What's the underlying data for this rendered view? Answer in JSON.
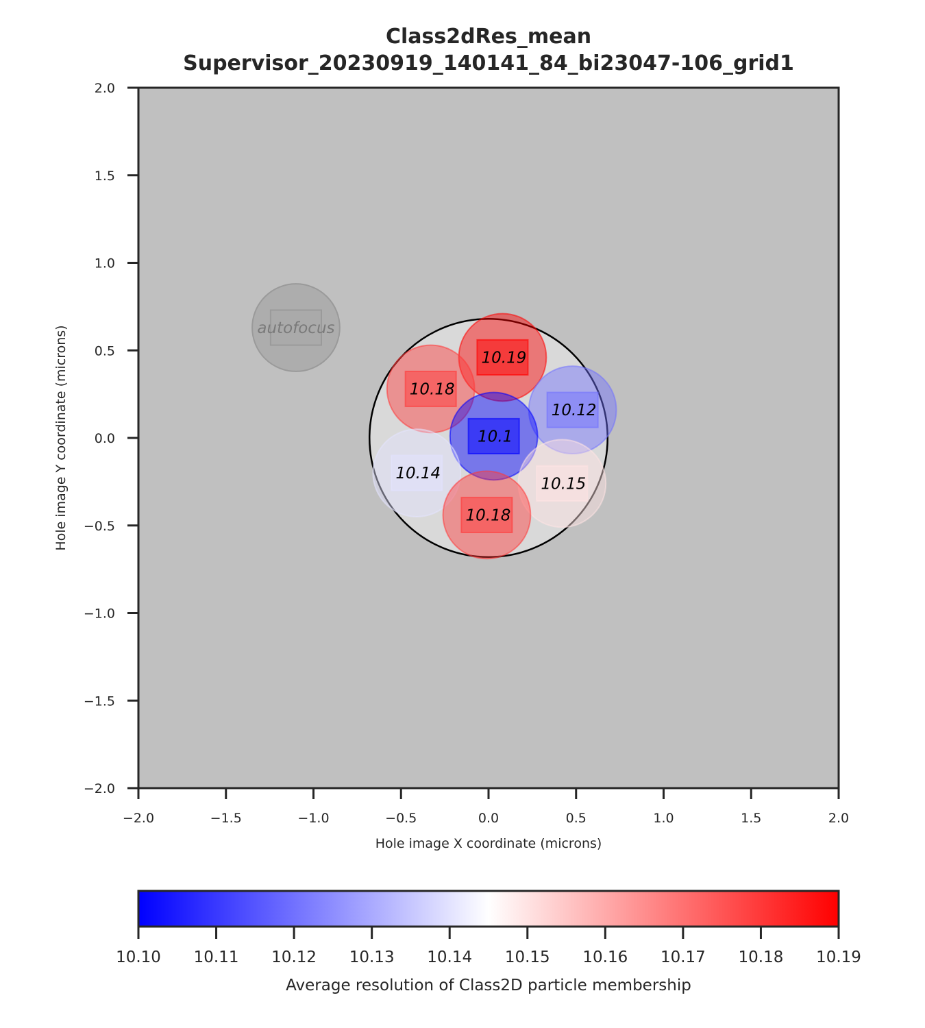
{
  "chart_data": {
    "type": "scatter",
    "title": "Class2dRes_mean",
    "subtitle": "Supervisor_20230919_140141_84_bi23047-106_grid1",
    "xlabel": "Hole image X coordinate (microns)",
    "ylabel": "Hole image Y coordinate (microns)",
    "xlim": [
      -2.0,
      2.0
    ],
    "ylim": [
      -2.0,
      2.0
    ],
    "x_ticks": [
      "−2.0",
      "−1.5",
      "−1.0",
      "−0.5",
      "0.0",
      "0.5",
      "1.0",
      "1.5",
      "2.0"
    ],
    "y_ticks": [
      "2.0",
      "1.5",
      "1.0",
      "0.5",
      "0.0",
      "−0.5",
      "−1.0",
      "−1.5",
      "−2.0"
    ],
    "background_color": "#c0c0c0",
    "hole": {
      "x": 0.0,
      "y": 0.0,
      "radius": 0.68
    },
    "autofocus": {
      "label": "autofocus",
      "x": -1.1,
      "y": 0.63,
      "radius": 0.25
    },
    "shots": [
      {
        "x": 0.08,
        "y": 0.46,
        "value": 10.19,
        "label": "10.19"
      },
      {
        "x": -0.33,
        "y": 0.28,
        "value": 10.18,
        "label": "10.18"
      },
      {
        "x": 0.48,
        "y": 0.16,
        "value": 10.12,
        "label": "10.12"
      },
      {
        "x": 0.03,
        "y": 0.01,
        "value": 10.1,
        "label": "10.1"
      },
      {
        "x": -0.41,
        "y": -0.2,
        "value": 10.14,
        "label": "10.14"
      },
      {
        "x": 0.42,
        "y": -0.26,
        "value": 10.15,
        "label": "10.15"
      },
      {
        "x": -0.01,
        "y": -0.44,
        "value": 10.18,
        "label": "10.18"
      }
    ],
    "shot_radius": 0.25,
    "colorbar": {
      "cmap": "bwr",
      "vmin": 10.1,
      "vmax": 10.19,
      "ticks": [
        "10.10",
        "10.11",
        "10.12",
        "10.13",
        "10.14",
        "10.15",
        "10.16",
        "10.17",
        "10.18",
        "10.19"
      ],
      "label": "Average resolution of Class2D particle membership",
      "colors": [
        "#0000ff",
        "#ffffff",
        "#ff0000"
      ]
    }
  }
}
